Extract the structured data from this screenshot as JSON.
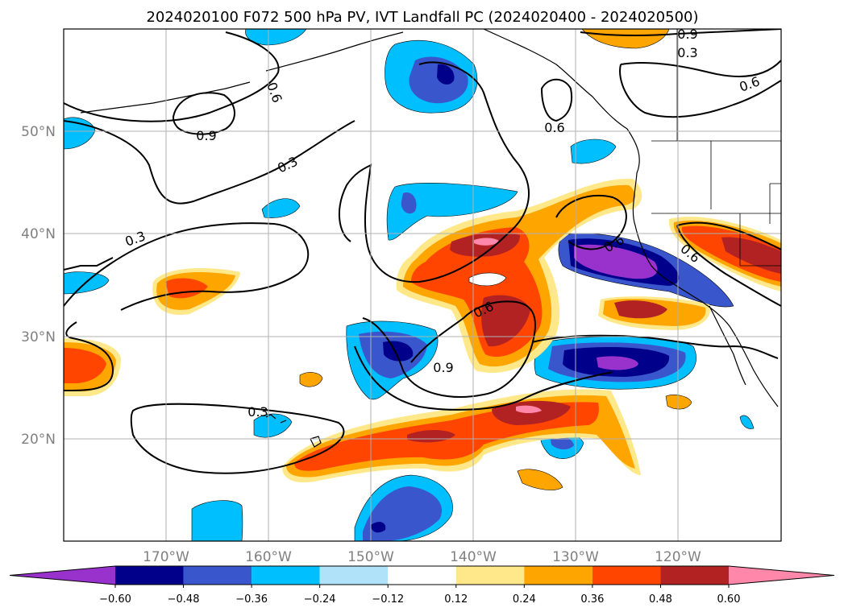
{
  "title": "2024020100 F072 500 hPa PV, IVT Landfall PC (2024020400 - 2024020500)",
  "lat_labels": [
    "50°N",
    "40°N",
    "30°N",
    "20°N"
  ],
  "lon_labels": [
    "170°W",
    "160°W",
    "150°W",
    "140°W",
    "130°W",
    "120°W"
  ],
  "contour_labels": [
    "0.9",
    "0.6",
    "0.3",
    "0.6",
    "0.9",
    "0.3",
    "0.6",
    "0.3",
    "0.6",
    "0.6",
    "0.6",
    "0.9",
    "0.3"
  ],
  "colorbar": {
    "ticks": [
      "−0.60",
      "−0.48",
      "−0.36",
      "−0.24",
      "−0.12",
      "0.12",
      "0.24",
      "0.36",
      "0.48",
      "0.60"
    ],
    "colors": [
      "#9932cc",
      "#00008b",
      "#3a56cc",
      "#00bfff",
      "#b0e2fa",
      "#ffffff",
      "#ffe88a",
      "#ffa500",
      "#ff4500",
      "#b22222",
      "#ff88aa"
    ]
  }
}
